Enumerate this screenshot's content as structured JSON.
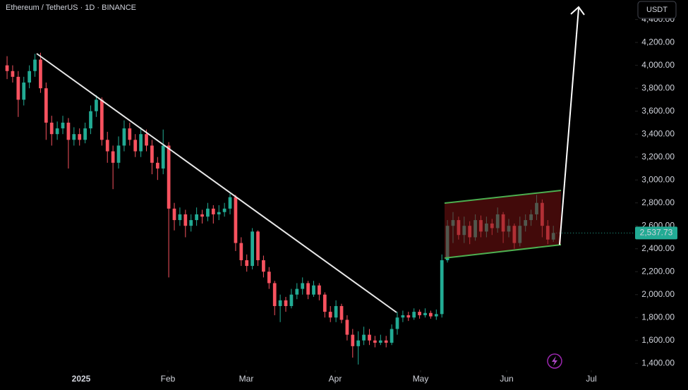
{
  "chart_data": {
    "type": "candlestick",
    "title": "Ethereum / TetherUS · 1D · BINANCE",
    "currency_button": "USDT",
    "up_color": "#22ab94",
    "down_color": "#f7525f",
    "open": [
      4000,
      3950,
      3900,
      3700,
      3850,
      3950,
      4050,
      3800,
      3500,
      3400,
      3450,
      3500,
      3350,
      3400,
      3350,
      3450,
      3600,
      3700,
      3350,
      3250,
      3150,
      3300,
      3450,
      3350,
      3250,
      3400,
      3300,
      3150,
      3100,
      3300,
      2750,
      2650,
      2700,
      2600,
      2650,
      2700,
      2680,
      2750,
      2700,
      2720,
      2750,
      2850,
      2450,
      2300,
      2250,
      2550,
      2300,
      2200,
      2100,
      1900,
      1950,
      1900,
      2000,
      2050,
      2100,
      2000,
      2080,
      2000,
      1850,
      1800,
      1900,
      1780,
      1650,
      1550,
      1600,
      1650,
      1600,
      1580,
      1600,
      1580,
      1700,
      1800,
      1820,
      1800,
      1850,
      1820,
      1840,
      1810,
      1830,
      2300,
      2600,
      2650,
      2520,
      2600,
      2500,
      2650,
      2550,
      2620,
      2580,
      2700,
      2550,
      2600,
      2450,
      2600,
      2650,
      2700,
      2800,
      2600,
      2480
    ],
    "high": [
      4080,
      4000,
      3950,
      3900,
      4000,
      4100,
      4110,
      3850,
      3560,
      3510,
      3560,
      3540,
      3460,
      3450,
      3500,
      3650,
      3740,
      3720,
      3420,
      3300,
      3380,
      3520,
      3500,
      3400,
      3460,
      3440,
      3350,
      3200,
      3440,
      3330,
      2800,
      2760,
      2740,
      2700,
      2760,
      2740,
      2800,
      2780,
      2780,
      2800,
      2880,
      2870,
      2500,
      2350,
      2580,
      2560,
      2340,
      2240,
      2120,
      2000,
      1980,
      2050,
      2100,
      2150,
      2120,
      2120,
      2100,
      2020,
      1900,
      1950,
      1920,
      1820,
      1700,
      1680,
      1720,
      1700,
      1640,
      1650,
      1640,
      1740,
      1850,
      1860,
      1850,
      1880,
      1870,
      1880,
      1860,
      1870,
      2350,
      2650,
      2720,
      2680,
      2680,
      2640,
      2700,
      2690,
      2680,
      2660,
      2760,
      2720,
      2660,
      2620,
      2680,
      2700,
      2740,
      2870,
      2830,
      2650,
      2600
    ],
    "low": [
      3880,
      3850,
      3550,
      3650,
      3800,
      3900,
      3760,
      3350,
      3300,
      3350,
      3400,
      3100,
      3300,
      3300,
      3320,
      3400,
      3550,
      3300,
      3150,
      2920,
      3100,
      3250,
      3300,
      3200,
      3200,
      3250,
      3050,
      3000,
      3050,
      2150,
      2560,
      2600,
      2500,
      2550,
      2600,
      2620,
      2640,
      2620,
      2650,
      2680,
      2700,
      2380,
      2250,
      2200,
      2220,
      2250,
      2150,
      2050,
      1820,
      1760,
      1850,
      1880,
      1960,
      2000,
      1960,
      1980,
      1950,
      1800,
      1760,
      1760,
      1750,
      1600,
      1450,
      1390,
      1560,
      1560,
      1540,
      1560,
      1540,
      1560,
      1650,
      1760,
      1770,
      1780,
      1790,
      1800,
      1790,
      1780,
      1800,
      2280,
      2450,
      2480,
      2450,
      2440,
      2470,
      2500,
      2500,
      2520,
      2540,
      2450,
      2500,
      2400,
      2420,
      2550,
      2600,
      2650,
      2500,
      2440,
      2460
    ],
    "close": [
      3950,
      3900,
      3700,
      3850,
      3950,
      4050,
      3800,
      3500,
      3400,
      3450,
      3500,
      3350,
      3400,
      3350,
      3450,
      3600,
      3700,
      3350,
      3250,
      3150,
      3300,
      3450,
      3350,
      3250,
      3400,
      3300,
      3150,
      3100,
      3300,
      2750,
      2650,
      2700,
      2600,
      2650,
      2700,
      2680,
      2750,
      2700,
      2720,
      2750,
      2850,
      2450,
      2300,
      2250,
      2550,
      2300,
      2200,
      2100,
      1900,
      1950,
      1900,
      2000,
      2050,
      2100,
      2000,
      2080,
      2000,
      1850,
      1800,
      1900,
      1780,
      1650,
      1550,
      1600,
      1650,
      1600,
      1580,
      1600,
      1580,
      1700,
      1800,
      1820,
      1800,
      1850,
      1820,
      1840,
      1810,
      1830,
      2300,
      2600,
      2650,
      2520,
      2600,
      2500,
      2650,
      2550,
      2620,
      2580,
      2700,
      2550,
      2600,
      2450,
      2600,
      2650,
      2700,
      2800,
      2600,
      2480,
      2537.73
    ],
    "last_price": {
      "value": 2537.73,
      "label": "2,537.73"
    },
    "xlim": [
      -1.27,
      112.66
    ],
    "xticks": [
      {
        "value": 13.29,
        "label": "2025"
      },
      {
        "value": 28.86,
        "label": "Feb"
      },
      {
        "value": 42.91,
        "label": "Mar"
      },
      {
        "value": 58.86,
        "label": "Apr"
      },
      {
        "value": 74.18,
        "label": "May"
      },
      {
        "value": 89.62,
        "label": "Jun"
      },
      {
        "value": 104.81,
        "label": "Jul"
      }
    ],
    "ylim": [
      1340,
      4570
    ],
    "yticks": [
      {
        "value": 1400,
        "label": "1,400.00"
      },
      {
        "value": 1600,
        "label": "1,600.00"
      },
      {
        "value": 1800,
        "label": "1,800.00"
      },
      {
        "value": 2000,
        "label": "2,000.00"
      },
      {
        "value": 2200,
        "label": "2,200.00"
      },
      {
        "value": 2400,
        "label": "2,400.00"
      },
      {
        "value": 2600,
        "label": "2,600.00"
      },
      {
        "value": 2800,
        "label": "2,800.00"
      },
      {
        "value": 3000,
        "label": "3,000.00"
      },
      {
        "value": 3200,
        "label": "3,200.00"
      },
      {
        "value": 3400,
        "label": "3,400.00"
      },
      {
        "value": 3600,
        "label": "3,600.00"
      },
      {
        "value": 3800,
        "label": "3,800.00"
      },
      {
        "value": 4000,
        "label": "4,000.00"
      },
      {
        "value": 4200,
        "label": "4,200.00"
      },
      {
        "value": 4400,
        "label": "4,400.00"
      }
    ]
  }
}
